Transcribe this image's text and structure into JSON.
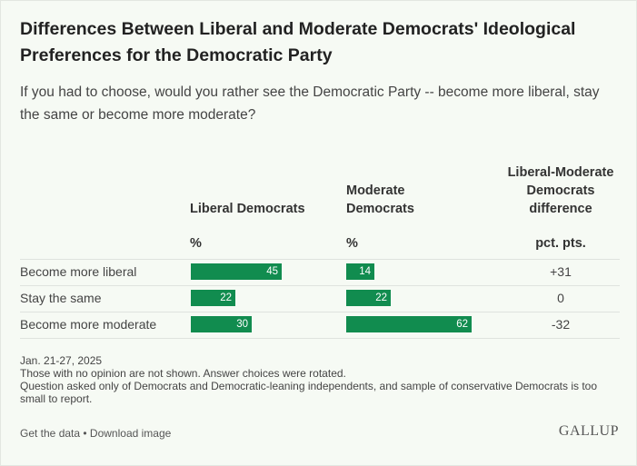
{
  "header": {
    "title": "Differences Between Liberal and Moderate Democrats' Ideological Preferences for the Democratic Party",
    "subtitle": "If you had to choose, would you rather see the Democratic Party -- become more liberal, stay the same or become more moderate?"
  },
  "columns": {
    "liberal": {
      "title": "Liberal Democrats",
      "unit": "%"
    },
    "moderate": {
      "title_line1": "Moderate",
      "title_line2": "Democrats",
      "unit": "%"
    },
    "difference": {
      "title_line1": "Liberal-Moderate",
      "title_line2": "Democrats",
      "title_line3": "difference",
      "unit": "pct. pts."
    }
  },
  "chart_data": {
    "type": "table",
    "categories": [
      "Become more liberal",
      "Stay the same",
      "Become more moderate"
    ],
    "series": [
      {
        "name": "Liberal Democrats",
        "values": [
          45,
          22,
          30
        ]
      },
      {
        "name": "Moderate Democrats",
        "values": [
          14,
          22,
          62
        ]
      }
    ],
    "difference": [
      "+31",
      "0",
      "-32"
    ],
    "bar_color": "#118c4f"
  },
  "notes": {
    "date": "Jan. 21-27, 2025",
    "line1": "Those with no opinion are not shown. Answer choices were rotated.",
    "line2": "Question asked only of Democrats and Democratic-leaning independents, and sample of conservative Democrats is too small to report."
  },
  "footer": {
    "get_data": "Get the data",
    "separator": " • ",
    "download": "Download image",
    "logo": "GALLUP"
  }
}
